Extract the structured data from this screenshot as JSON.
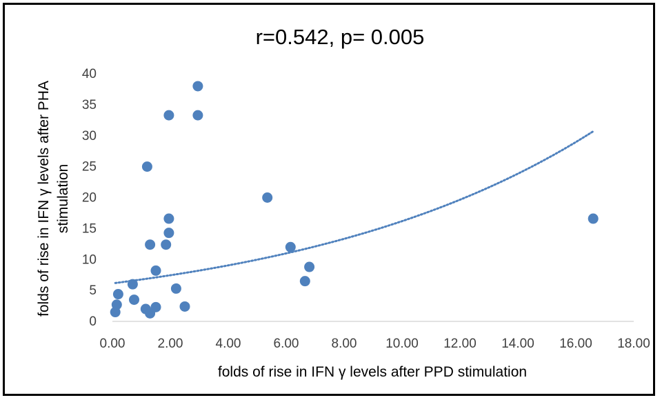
{
  "chart_data": {
    "type": "scatter",
    "title": "r=0.542, p= 0.005",
    "xlabel": "folds of rise in IFN γ levels after PPD stimulation",
    "ylabel_lines": [
      "folds of rise in IFN γ levels after PHA",
      "stimulation"
    ],
    "xlim": [
      0,
      18
    ],
    "ylim": [
      0,
      40
    ],
    "x_ticks": [
      "0.00",
      "2.00",
      "4.00",
      "6.00",
      "8.00",
      "10.00",
      "12.00",
      "14.00",
      "16.00",
      "18.00"
    ],
    "y_ticks": [
      "0",
      "5",
      "10",
      "15",
      "20",
      "25",
      "30",
      "35",
      "40"
    ],
    "grid": false,
    "legend": "none",
    "marker_color": "#4f81bd",
    "trendline": {
      "type": "exponential",
      "style": "dotted",
      "color": "#4f81bd",
      "x_range": [
        0.1,
        16.6
      ],
      "start_y": 6.2,
      "end_y": 30.7
    },
    "points": [
      {
        "x": 0.1,
        "y": 1.5
      },
      {
        "x": 0.15,
        "y": 2.7
      },
      {
        "x": 0.2,
        "y": 4.4
      },
      {
        "x": 0.7,
        "y": 6.0
      },
      {
        "x": 0.75,
        "y": 3.5
      },
      {
        "x": 1.15,
        "y": 2.0
      },
      {
        "x": 1.2,
        "y": 25.0
      },
      {
        "x": 1.3,
        "y": 1.3
      },
      {
        "x": 1.3,
        "y": 12.4
      },
      {
        "x": 1.5,
        "y": 8.2
      },
      {
        "x": 1.5,
        "y": 2.3
      },
      {
        "x": 1.85,
        "y": 12.4
      },
      {
        "x": 1.95,
        "y": 33.3
      },
      {
        "x": 1.95,
        "y": 16.6
      },
      {
        "x": 1.95,
        "y": 14.3
      },
      {
        "x": 2.2,
        "y": 5.3
      },
      {
        "x": 2.5,
        "y": 2.4
      },
      {
        "x": 2.95,
        "y": 38.0
      },
      {
        "x": 2.95,
        "y": 33.3
      },
      {
        "x": 5.35,
        "y": 20.0
      },
      {
        "x": 6.15,
        "y": 12.0
      },
      {
        "x": 6.65,
        "y": 6.5
      },
      {
        "x": 6.8,
        "y": 8.8
      },
      {
        "x": 16.6,
        "y": 16.6
      }
    ]
  }
}
